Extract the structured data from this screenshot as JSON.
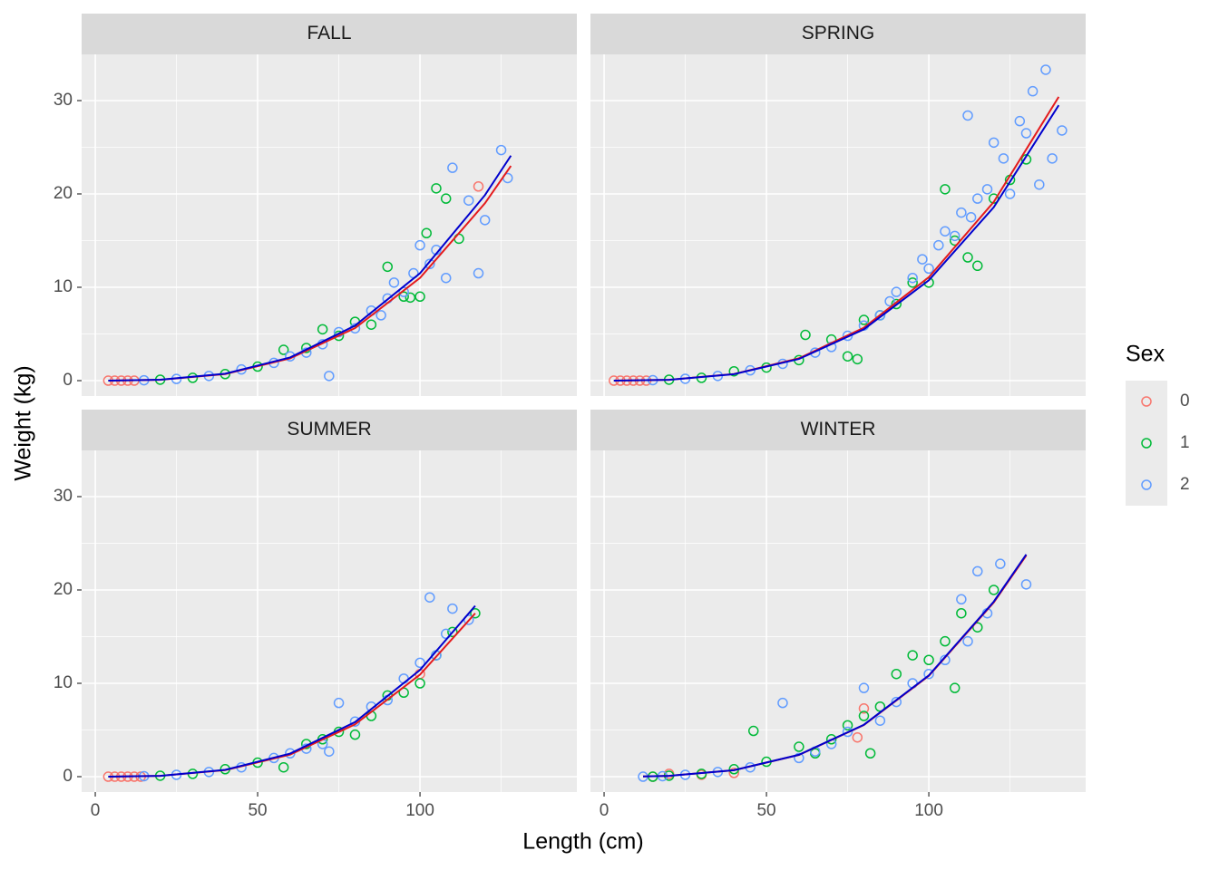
{
  "chart_data": {
    "type": "scatter",
    "x_label": "Length (cm)",
    "y_label": "Weight (kg)",
    "legend_title": "Sex",
    "xlim": [
      -4.2,
      148.3
    ],
    "ylim": [
      -1.65,
      34.95
    ],
    "xticks": [
      0,
      50,
      100
    ],
    "yticks": [
      0,
      10,
      20,
      30
    ],
    "xminor": [
      25,
      75,
      125
    ],
    "yminor": [
      5,
      15,
      25
    ],
    "grid": true,
    "series": [
      {
        "name": "0",
        "color": "#F8766D"
      },
      {
        "name": "1",
        "color": "#00BA38"
      },
      {
        "name": "2",
        "color": "#619CFF"
      }
    ],
    "panels": [
      {
        "title": "FALL",
        "points": [
          {
            "x": [
              4,
              6,
              8,
              10,
              12,
              118
            ],
            "values": [
              0,
              0,
              0,
              0,
              0,
              20.8
            ]
          },
          {
            "x": [
              20,
              30,
              40,
              50,
              58,
              65,
              70,
              75,
              80,
              85,
              90,
              95,
              97,
              100,
              102,
              105,
              108,
              112
            ],
            "values": [
              0.1,
              0.3,
              0.7,
              1.5,
              3.3,
              3.5,
              5.5,
              4.8,
              6.3,
              6.0,
              12.2,
              9.0,
              8.9,
              9.0,
              15.8,
              20.6,
              19.5,
              15.2
            ]
          },
          {
            "x": [
              15,
              25,
              35,
              45,
              55,
              60,
              65,
              70,
              72,
              75,
              80,
              85,
              88,
              90,
              92,
              95,
              98,
              100,
              103,
              105,
              108,
              110,
              115,
              118,
              120,
              125,
              127
            ],
            "values": [
              0.04,
              0.18,
              0.5,
              1.2,
              1.9,
              2.6,
              3.0,
              3.9,
              0.5,
              5.2,
              5.6,
              7.5,
              7.0,
              8.8,
              10.5,
              9.5,
              11.5,
              14.5,
              12.5,
              14.0,
              11.0,
              22.8,
              19.3,
              11.5,
              17.2,
              24.7,
              21.7
            ]
          }
        ],
        "fits": [
          {
            "color": "#E41A1C",
            "x": [
              4,
              20,
              40,
              60,
              80,
              100,
              120,
              128
            ],
            "values": [
              0,
              0.088,
              0.7,
              2.38,
              5.63,
              11.0,
              19.0,
              23.0
            ]
          },
          {
            "color": "#0000CD",
            "x": [
              4,
              20,
              40,
              60,
              80,
              100,
              120,
              128
            ],
            "values": [
              0,
              0.092,
              0.74,
              2.48,
              5.89,
              11.5,
              19.87,
              24.1
            ]
          }
        ]
      },
      {
        "title": "SPRING",
        "points": [
          {
            "x": [
              3,
              5,
              7,
              9,
              11,
              13
            ],
            "values": [
              0,
              0,
              0,
              0,
              0,
              0
            ]
          },
          {
            "x": [
              20,
              30,
              40,
              50,
              60,
              62,
              70,
              75,
              78,
              80,
              85,
              90,
              95,
              100,
              105,
              108,
              112,
              115,
              120,
              125,
              130
            ],
            "values": [
              0.1,
              0.3,
              1.0,
              1.4,
              2.2,
              4.9,
              4.4,
              2.6,
              2.3,
              6.5,
              7.0,
              8.2,
              10.5,
              10.5,
              20.5,
              15.0,
              13.2,
              12.3,
              19.5,
              21.5,
              23.7
            ]
          },
          {
            "x": [
              15,
              25,
              35,
              45,
              55,
              65,
              70,
              75,
              80,
              85,
              88,
              90,
              95,
              98,
              100,
              103,
              105,
              108,
              110,
              112,
              113,
              115,
              118,
              120,
              123,
              125,
              128,
              130,
              132,
              134,
              136,
              138,
              141
            ],
            "values": [
              0.05,
              0.2,
              0.5,
              1.1,
              1.8,
              3.0,
              3.6,
              4.8,
              5.9,
              7.0,
              8.5,
              9.5,
              11.0,
              13.0,
              12.0,
              14.5,
              16.0,
              15.5,
              18.0,
              28.4,
              17.5,
              19.5,
              20.5,
              25.5,
              23.8,
              20.0,
              27.8,
              26.5,
              31.0,
              21.0,
              33.3,
              23.8,
              26.8
            ]
          }
        ],
        "fits": [
          {
            "color": "#E41A1C",
            "x": [
              3,
              20,
              40,
              60,
              80,
              100,
              120,
              140
            ],
            "values": [
              0,
              0.089,
              0.71,
              2.39,
              5.67,
              11.08,
              19.15,
              30.4
            ]
          },
          {
            "color": "#0000CD",
            "x": [
              3,
              20,
              40,
              60,
              80,
              100,
              120,
              140
            ],
            "values": [
              0,
              0.086,
              0.69,
              2.32,
              5.5,
              10.75,
              18.58,
              29.5
            ]
          }
        ]
      },
      {
        "title": "SUMMER",
        "points": [
          {
            "x": [
              4,
              6,
              8,
              10,
              12,
              14,
              100
            ],
            "values": [
              0,
              0,
              0,
              0,
              0,
              0,
              11.0
            ]
          },
          {
            "x": [
              20,
              30,
              40,
              50,
              58,
              65,
              70,
              75,
              80,
              85,
              90,
              95,
              100,
              105,
              110,
              117
            ],
            "values": [
              0.1,
              0.3,
              0.8,
              1.5,
              1.0,
              3.5,
              4.0,
              4.8,
              4.5,
              6.5,
              8.7,
              9.0,
              10.0,
              13.0,
              15.5,
              17.5
            ]
          },
          {
            "x": [
              15,
              25,
              35,
              45,
              55,
              60,
              65,
              70,
              72,
              75,
              80,
              85,
              90,
              95,
              100,
              103,
              105,
              108,
              110,
              115
            ],
            "values": [
              0.05,
              0.2,
              0.5,
              1.0,
              2.0,
              2.5,
              3.0,
              3.5,
              2.7,
              7.9,
              5.9,
              7.5,
              8.2,
              10.5,
              12.2,
              19.2,
              13.0,
              15.3,
              18.0,
              16.8
            ]
          }
        ],
        "fits": [
          {
            "color": "#E41A1C",
            "x": [
              4,
              20,
              40,
              60,
              80,
              100,
              117
            ],
            "values": [
              0,
              0.087,
              0.7,
              2.36,
              5.6,
              10.93,
              17.5
            ]
          },
          {
            "color": "#0000CD",
            "x": [
              4,
              20,
              40,
              60,
              80,
              100,
              117
            ],
            "values": [
              0,
              0.091,
              0.73,
              2.47,
              5.85,
              11.43,
              18.3
            ]
          }
        ]
      },
      {
        "title": "WINTER",
        "points": [
          {
            "x": [
              15,
              20,
              30,
              40,
              78,
              80
            ],
            "values": [
              0,
              0.3,
              0.2,
              0.4,
              4.2,
              7.3
            ]
          },
          {
            "x": [
              15,
              20,
              30,
              40,
              46,
              50,
              60,
              65,
              70,
              75,
              80,
              82,
              85,
              90,
              95,
              100,
              105,
              108,
              110,
              115,
              120
            ],
            "values": [
              0,
              0.1,
              0.3,
              0.8,
              4.9,
              1.6,
              3.2,
              2.5,
              4.0,
              5.5,
              6.5,
              2.5,
              7.5,
              11.0,
              13.0,
              12.5,
              14.5,
              9.5,
              17.5,
              16.0,
              20.0
            ]
          },
          {
            "x": [
              12,
              18,
              25,
              35,
              45,
              55,
              60,
              65,
              70,
              75,
              80,
              85,
              90,
              95,
              100,
              105,
              110,
              112,
              115,
              118,
              122,
              130
            ],
            "values": [
              0,
              0.05,
              0.2,
              0.5,
              1.0,
              7.9,
              2.0,
              2.7,
              3.5,
              4.8,
              9.5,
              6.0,
              8.0,
              10.0,
              11.0,
              12.5,
              19.0,
              14.5,
              22.0,
              17.5,
              22.8,
              20.6
            ]
          }
        ],
        "fits": [
          {
            "color": "#E41A1C",
            "x": [
              12,
              20,
              40,
              60,
              80,
              100,
              120,
              130
            ],
            "values": [
              0.019,
              0.086,
              0.69,
              2.33,
              5.53,
              10.8,
              18.66,
              23.7
            ]
          },
          {
            "color": "#0000CD",
            "x": [
              12,
              20,
              40,
              60,
              80,
              100,
              120,
              130
            ],
            "values": [
              0.019,
              0.087,
              0.69,
              2.34,
              5.56,
              10.85,
              18.75,
              23.8
            ]
          }
        ]
      }
    ]
  }
}
